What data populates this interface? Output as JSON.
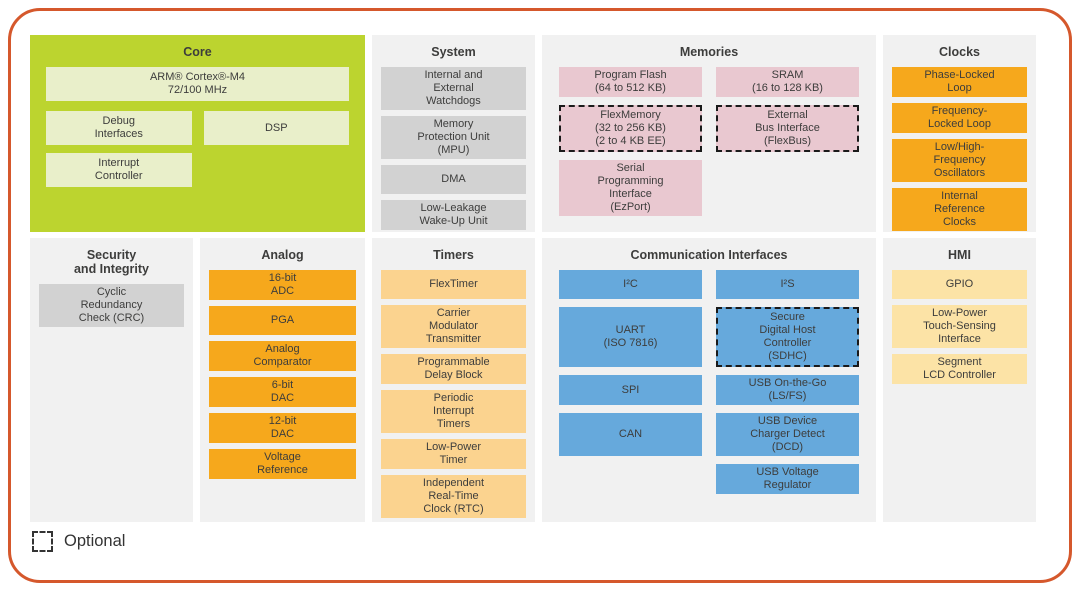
{
  "legend": {
    "label": "Optional"
  },
  "colors": {
    "frame_border": "#D5582C",
    "panel_bg": "#F1F1F1",
    "core_bg": "#BCD42F",
    "core_block": "#E9EFCA",
    "gray_block": "#D2D2D2",
    "pink_block": "#E9C8D0",
    "orange_block": "#F6A81C",
    "peach_block": "#FBD38F",
    "yellow_block": "#FCE3A6",
    "blue_block": "#66A9DC",
    "text": "#3D3D3C",
    "dashed_border": "#1A1A1A"
  },
  "sections": {
    "core": {
      "title": "Core",
      "blocks": {
        "cpu": {
          "label": "ARM® Cortex®-M4\n72/100 MHz"
        },
        "debug": {
          "label": "Debug\nInterfaces"
        },
        "dsp": {
          "label": "DSP"
        },
        "interrupt": {
          "label": "Interrupt\nController"
        }
      }
    },
    "system": {
      "title": "System",
      "blocks": [
        {
          "label": "Internal and\nExternal\nWatchdogs"
        },
        {
          "label": "Memory\nProtection Unit\n(MPU)"
        },
        {
          "label": "DMA"
        },
        {
          "label": "Low-Leakage\nWake-Up Unit"
        }
      ]
    },
    "memories": {
      "title": "Memories",
      "col1": [
        {
          "label": "Program Flash\n(64 to 512 KB)"
        },
        {
          "label": "FlexMemory\n(32 to 256 KB)\n(2 to 4 KB EE)",
          "optional": true
        },
        {
          "label": "Serial\nProgramming\nInterface\n(EzPort)"
        }
      ],
      "col2": [
        {
          "label": "SRAM\n(16 to 128 KB)"
        },
        {
          "label": "External\nBus Interface\n(FlexBus)",
          "optional": true
        }
      ]
    },
    "clocks": {
      "title": "Clocks",
      "blocks": [
        {
          "label": "Phase-Locked\nLoop"
        },
        {
          "label": "Frequency-\nLocked Loop"
        },
        {
          "label": "Low/High-\nFrequency\nOscillators"
        },
        {
          "label": "Internal\nReference\nClocks"
        }
      ]
    },
    "security": {
      "title": "Security\nand Integrity",
      "blocks": [
        {
          "label": "Cyclic\nRedundancy\nCheck (CRC)"
        }
      ]
    },
    "analog": {
      "title": "Analog",
      "blocks": [
        {
          "label": "16-bit\nADC"
        },
        {
          "label": "PGA"
        },
        {
          "label": "Analog\nComparator"
        },
        {
          "label": "6-bit\nDAC"
        },
        {
          "label": "12-bit\nDAC"
        },
        {
          "label": "Voltage\nReference"
        }
      ]
    },
    "timers": {
      "title": "Timers",
      "blocks": [
        {
          "label": "FlexTimer"
        },
        {
          "label": "Carrier\nModulator\nTransmitter"
        },
        {
          "label": "Programmable\nDelay Block"
        },
        {
          "label": "Periodic\nInterrupt\nTimers"
        },
        {
          "label": "Low-Power\nTimer"
        },
        {
          "label": "Independent\nReal-Time\nClock (RTC)"
        }
      ]
    },
    "communication": {
      "title": "Communication Interfaces",
      "col1": [
        {
          "label": "I²C"
        },
        {
          "label": "UART\n(ISO 7816)"
        },
        {
          "label": "SPI"
        },
        {
          "label": "CAN"
        }
      ],
      "col2": [
        {
          "label": "I²S"
        },
        {
          "label": "Secure\nDigital Host\nController\n(SDHC)",
          "optional": true
        },
        {
          "label": "USB On-the-Go\n(LS/FS)"
        },
        {
          "label": "USB Device\nCharger Detect\n(DCD)"
        },
        {
          "label": "USB Voltage\nRegulator"
        }
      ]
    },
    "hmi": {
      "title": "HMI",
      "blocks": [
        {
          "label": "GPIO"
        },
        {
          "label": "Low-Power\nTouch-Sensing\nInterface"
        },
        {
          "label": "Segment\nLCD Controller"
        }
      ]
    }
  }
}
